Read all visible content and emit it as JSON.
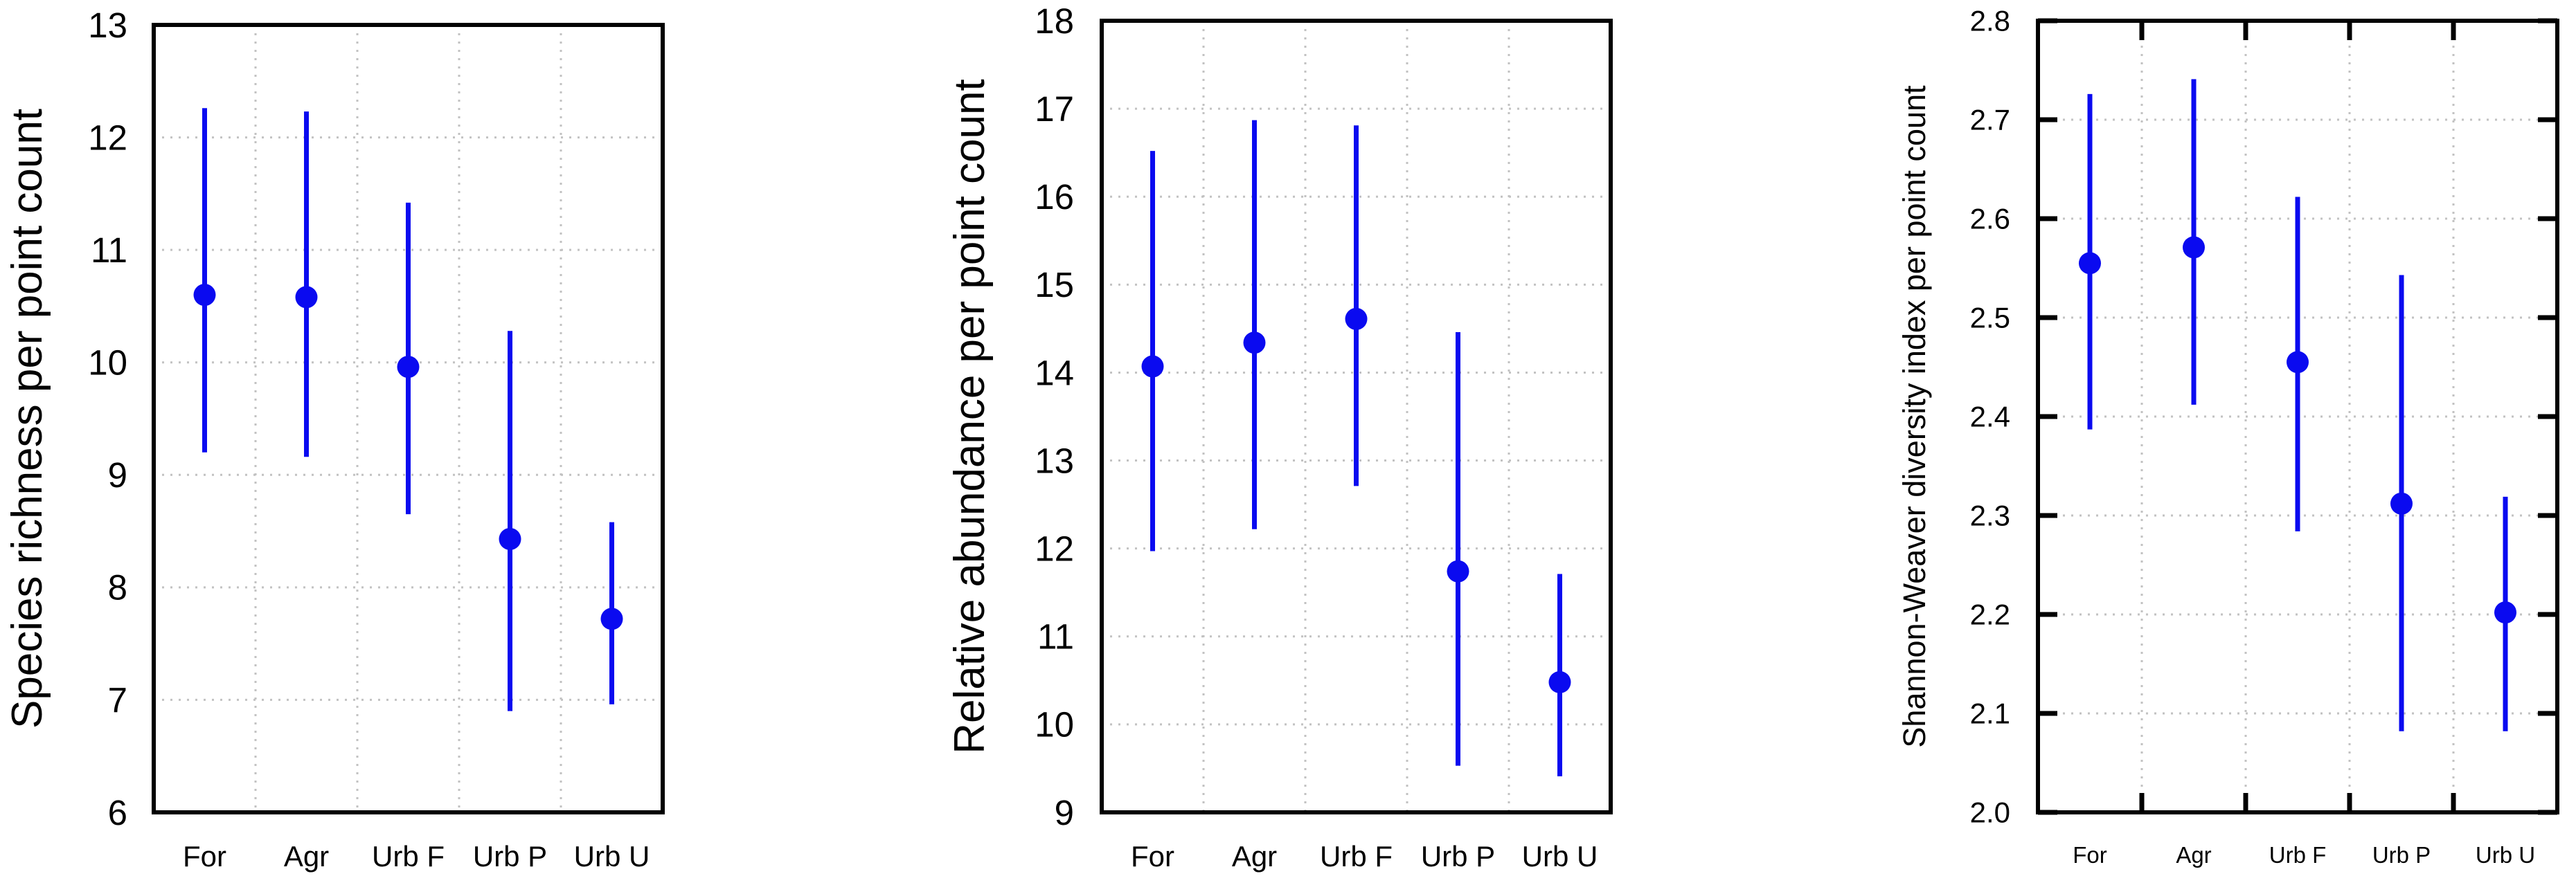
{
  "figure": {
    "background": "#ffffff",
    "description": "Three-panel dot plot with vertical error bars comparing five habitat categories"
  },
  "styles": {
    "marker_color": "#0a0af0",
    "grid_color": "#c2c2c2",
    "axis_color": "#000000",
    "text_color": "#000000"
  },
  "chart_data": [
    {
      "type": "scatter",
      "panel_id": "species-richness",
      "title": "",
      "xlabel": "",
      "ylabel": "Species richness per point count",
      "categories": [
        "For",
        "Agr",
        "Urb F",
        "Urb P",
        "Urb U"
      ],
      "ylim": [
        6,
        13
      ],
      "ytick_step": 1,
      "ytick_decimals": 0,
      "grid": true,
      "frame_ticks": false,
      "legend": "none",
      "points": [
        {
          "category": "For",
          "mean": 10.6,
          "ci_low": 9.2,
          "ci_high": 12.26
        },
        {
          "category": "Agr",
          "mean": 10.58,
          "ci_low": 9.16,
          "ci_high": 12.23
        },
        {
          "category": "Urb F",
          "mean": 9.96,
          "ci_low": 8.65,
          "ci_high": 11.42
        },
        {
          "category": "Urb P",
          "mean": 8.43,
          "ci_low": 6.9,
          "ci_high": 10.28
        },
        {
          "category": "Urb U",
          "mean": 7.72,
          "ci_low": 6.96,
          "ci_high": 8.58
        }
      ]
    },
    {
      "type": "scatter",
      "panel_id": "relative-abundance",
      "title": "",
      "xlabel": "",
      "ylabel": "Relative abundance per point count",
      "categories": [
        "For",
        "Agr",
        "Urb F",
        "Urb P",
        "Urb U"
      ],
      "ylim": [
        9,
        18
      ],
      "ytick_step": 1,
      "ytick_decimals": 0,
      "grid": true,
      "frame_ticks": false,
      "legend": "none",
      "points": [
        {
          "category": "For",
          "mean": 14.07,
          "ci_low": 11.97,
          "ci_high": 16.52
        },
        {
          "category": "Agr",
          "mean": 14.34,
          "ci_low": 12.22,
          "ci_high": 16.87
        },
        {
          "category": "Urb F",
          "mean": 14.61,
          "ci_low": 12.71,
          "ci_high": 16.81
        },
        {
          "category": "Urb P",
          "mean": 11.74,
          "ci_low": 9.53,
          "ci_high": 14.46
        },
        {
          "category": "Urb U",
          "mean": 10.48,
          "ci_low": 9.41,
          "ci_high": 11.71
        }
      ]
    },
    {
      "type": "scatter",
      "panel_id": "shannon-weaver",
      "title": "",
      "xlabel": "",
      "ylabel": "Shannon-Weaver diversity index per point count",
      "categories": [
        "For",
        "Agr",
        "Urb F",
        "Urb P",
        "Urb U"
      ],
      "ylim": [
        2.0,
        2.8
      ],
      "ytick_step": 0.1,
      "ytick_decimals": 1,
      "grid": true,
      "frame_ticks": true,
      "legend": "none",
      "points": [
        {
          "category": "For",
          "mean": 2.555,
          "ci_low": 2.387,
          "ci_high": 2.726
        },
        {
          "category": "Agr",
          "mean": 2.571,
          "ci_low": 2.412,
          "ci_high": 2.741
        },
        {
          "category": "Urb F",
          "mean": 2.455,
          "ci_low": 2.284,
          "ci_high": 2.622
        },
        {
          "category": "Urb P",
          "mean": 2.312,
          "ci_low": 2.082,
          "ci_high": 2.543
        },
        {
          "category": "Urb U",
          "mean": 2.202,
          "ci_low": 2.082,
          "ci_high": 2.319
        }
      ]
    }
  ]
}
